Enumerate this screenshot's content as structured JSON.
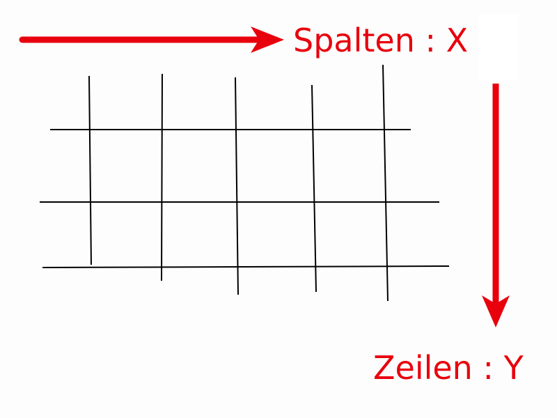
{
  "labels": {
    "columns": "Spalten : X",
    "rows": "Zeilen : Y"
  },
  "colors": {
    "accent": "#e8000d",
    "grid": "#000000",
    "background": "#fdfdfd"
  },
  "grid": {
    "columns": 5,
    "rows": 3
  },
  "icons": {
    "x_direction": "arrow-right-icon",
    "y_direction": "arrow-down-icon"
  }
}
